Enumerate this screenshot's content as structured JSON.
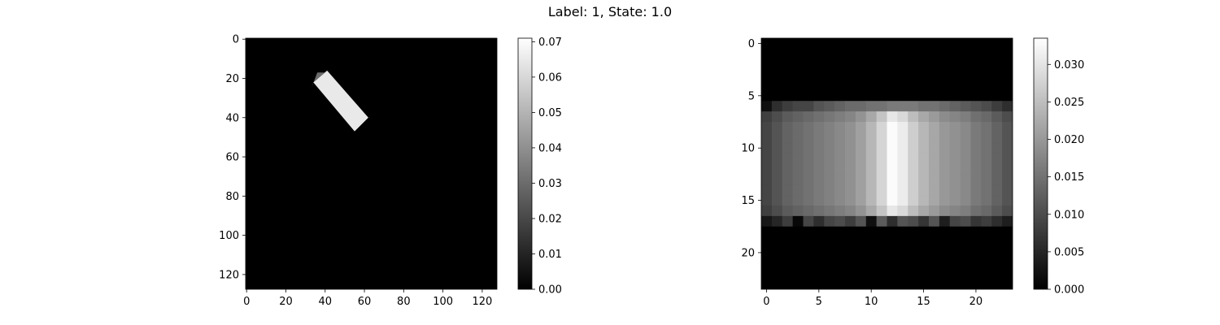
{
  "figure_title": "Label: 1, State: 1.0",
  "chart_data": [
    {
      "type": "heatmap",
      "title": "",
      "colormap": "gray",
      "grid": false,
      "image_size": [
        128,
        128
      ],
      "xlim": [
        -0.5,
        127.5
      ],
      "ylim": [
        127.5,
        -0.5
      ],
      "x_ticks": [
        0,
        20,
        40,
        60,
        80,
        100,
        120
      ],
      "y_ticks": [
        0,
        20,
        40,
        60,
        80,
        100,
        120
      ],
      "background_value": 0.0,
      "shapes": [
        {
          "kind": "rotated-rectangle",
          "corners": [
            [
              34,
              22
            ],
            [
              41,
              16
            ],
            [
              62,
              40
            ],
            [
              55,
              47
            ]
          ],
          "value": 0.065
        },
        {
          "kind": "edge-artifact",
          "corners": [
            [
              33,
              25
            ],
            [
              36,
              17
            ],
            [
              40,
              17
            ],
            [
              34,
              22
            ]
          ],
          "value": 0.03
        }
      ],
      "colorbar": {
        "min": 0.0,
        "max": 0.071,
        "ticks": [
          0.0,
          0.01,
          0.02,
          0.03,
          0.04,
          0.05,
          0.06,
          0.07
        ],
        "tick_labels": [
          "0.00",
          "0.01",
          "0.02",
          "0.03",
          "0.04",
          "0.05",
          "0.06",
          "0.07"
        ]
      }
    },
    {
      "type": "heatmap",
      "title": "",
      "colormap": "gray",
      "grid": false,
      "image_size": [
        24,
        24
      ],
      "xlim": [
        -0.5,
        23.5
      ],
      "ylim": [
        23.5,
        -0.5
      ],
      "x_ticks": [
        0,
        5,
        10,
        15,
        20
      ],
      "y_ticks": [
        0,
        5,
        10,
        15,
        20
      ],
      "row_range_nonzero": [
        6,
        17
      ],
      "column_profile": [
        0.009,
        0.011,
        0.013,
        0.014,
        0.015,
        0.016,
        0.017,
        0.018,
        0.019,
        0.021,
        0.024,
        0.028,
        0.033,
        0.031,
        0.027,
        0.024,
        0.022,
        0.02,
        0.019,
        0.018,
        0.016,
        0.015,
        0.013,
        0.011
      ],
      "edge_row_top_values": [
        0.002,
        0.006,
        0.008,
        0.009,
        0.009,
        0.011,
        0.012,
        0.013,
        0.014,
        0.014,
        0.015,
        0.015,
        0.016,
        0.016,
        0.016,
        0.015,
        0.015,
        0.014,
        0.013,
        0.012,
        0.011,
        0.01,
        0.008,
        0.006
      ],
      "edge_row_bottom_values": [
        0.003,
        0.005,
        0.008,
        0.001,
        0.009,
        0.006,
        0.009,
        0.01,
        0.008,
        0.011,
        0.002,
        0.012,
        0.006,
        0.011,
        0.01,
        0.007,
        0.011,
        0.004,
        0.009,
        0.01,
        0.007,
        0.008,
        0.006,
        0.004
      ],
      "colorbar": {
        "min": 0.0,
        "max": 0.0335,
        "ticks": [
          0.0,
          0.005,
          0.01,
          0.015,
          0.02,
          0.025,
          0.03
        ],
        "tick_labels": [
          "0.000",
          "0.005",
          "0.010",
          "0.015",
          "0.020",
          "0.025",
          "0.030"
        ]
      }
    }
  ]
}
